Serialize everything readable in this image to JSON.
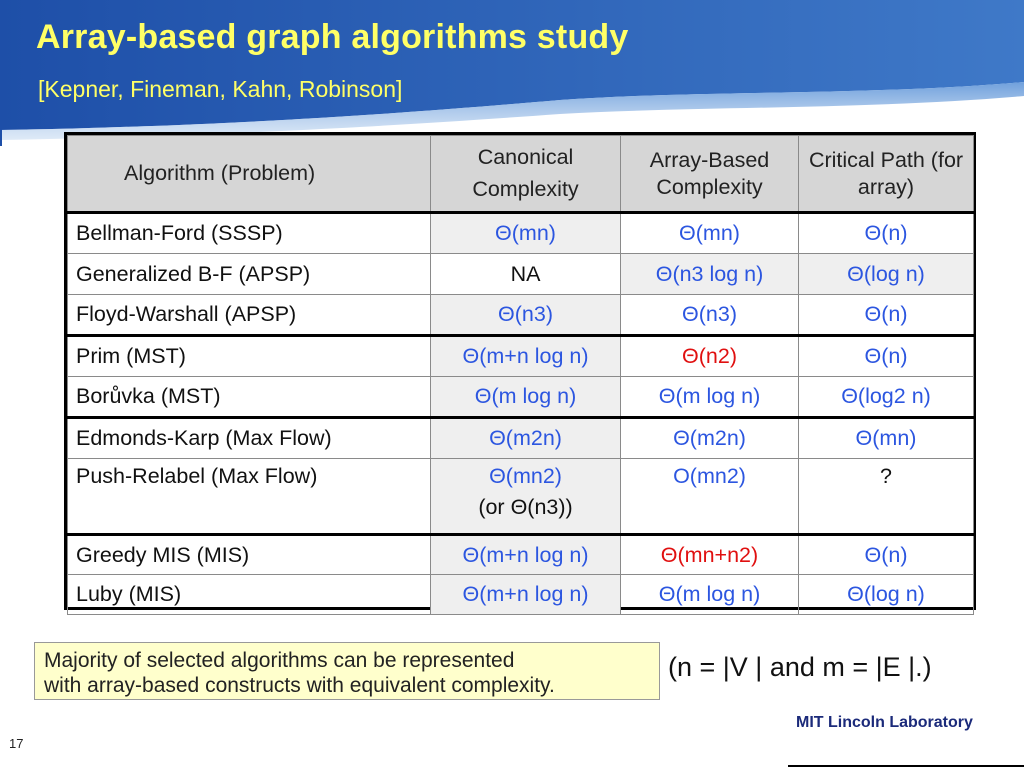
{
  "slide": {
    "title": "Array-based graph algorithms study",
    "subtitle": "[Kepner, Fineman, Kahn, Robinson]",
    "page_number": "17",
    "org_logo": "MIT Lincoln Laboratory"
  },
  "colors": {
    "header_gradient": [
      "#1e4fa8",
      "#3f79c8"
    ],
    "title_text": "#ffff66",
    "complexity_blue": "#2c56e0",
    "highlight_red": "#e01010",
    "header_row_bg": "#d6d6d6",
    "summary_bg": "#ffffcc"
  },
  "table": {
    "headers": [
      "Algorithm (Problem)",
      "Canonical Complexity",
      "Array-Based Complexity",
      "Critical Path (for array)"
    ],
    "rows": [
      {
        "algorithm": "Bellman-Ford (SSSP)",
        "canonical": "Θ(mn)",
        "array": "Θ(mn)",
        "critical": "Θ(n)"
      },
      {
        "algorithm": "Generalized B-F (APSP)",
        "canonical": "NA",
        "array": "Θ(n3 log n)",
        "critical": "Θ(log n)"
      },
      {
        "algorithm": "Floyd-Warshall (APSP)",
        "canonical": "Θ(n3)",
        "array": "Θ(n3)",
        "critical": "Θ(n)"
      },
      {
        "algorithm": "Prim (MST)",
        "canonical": "Θ(m+n log n)",
        "array": "Θ(n2)",
        "critical": "Θ(n)"
      },
      {
        "algorithm": "Borůvka (MST)",
        "canonical": "Θ(m log n)",
        "array": "Θ(m log n)",
        "critical": "Θ(log2 n)"
      },
      {
        "algorithm": "Edmonds-Karp (Max Flow)",
        "canonical": "Θ(m2n)",
        "array": "Θ(m2n)",
        "critical": "Θ(mn)"
      },
      {
        "algorithm": "Push-Relabel (Max Flow)",
        "canonical": "Θ(mn2)",
        "canonical_alt": "(or Θ(n3))",
        "array": "O(mn2)",
        "critical": "?"
      },
      {
        "algorithm": "Greedy MIS (MIS)",
        "canonical": "Θ(m+n log n)",
        "array": "Θ(mn+n2)",
        "critical": "Θ(n)"
      },
      {
        "algorithm": "Luby (MIS)",
        "canonical": "Θ(m+n log n)",
        "array": "Θ(m log n)",
        "critical": "Θ(log n)"
      }
    ]
  },
  "summary": {
    "line1": "Majority of selected algorithms can be represented",
    "line2": "with array-based constructs with equivalent complexity."
  },
  "legend_note": "(n = |V | and m = |E |.)"
}
